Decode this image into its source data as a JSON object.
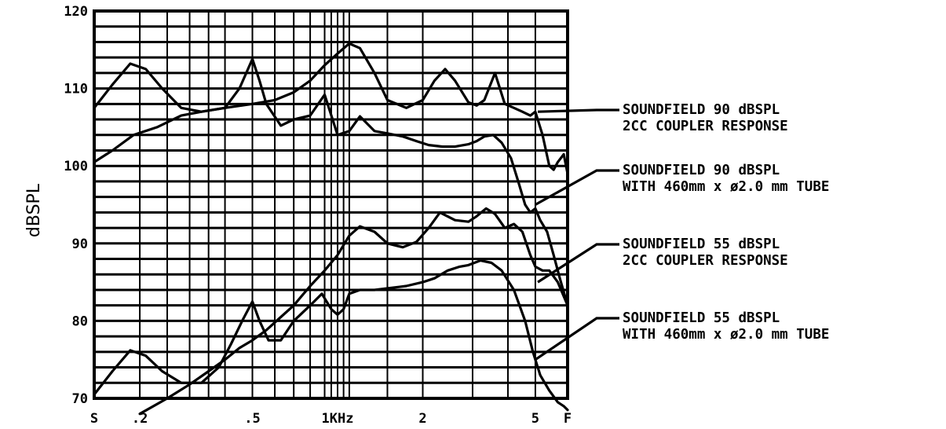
{
  "chart_data": {
    "type": "line",
    "title": "",
    "xlabel": "",
    "ylabel": "dBSPL",
    "ylim": [
      70,
      120
    ],
    "x_scale": "log",
    "xlim_khz": [
      0.138,
      6.5
    ],
    "grid": true,
    "y_ticks": [
      "70",
      "80",
      "90",
      "100",
      "110",
      "120"
    ],
    "x_tick_labels": [
      {
        "label": "S",
        "khz": 0.138
      },
      {
        "label": ".2",
        "khz": 0.2
      },
      {
        "label": ".5",
        "khz": 0.5
      },
      {
        "label": "1KHz",
        "khz": 1.0
      },
      {
        "label": "2",
        "khz": 2.0
      },
      {
        "label": "5",
        "khz": 5.0
      },
      {
        "label": "F",
        "khz": 6.5
      }
    ],
    "x_gridlines_khz": [
      0.2,
      0.25,
      0.3,
      0.35,
      0.4,
      0.5,
      0.6,
      0.7,
      0.8,
      0.9,
      0.95,
      1.0,
      1.05,
      1.1,
      1.5,
      2.0,
      3.0,
      4.0,
      5.0
    ],
    "series": [
      {
        "name": "SOUNDFIELD 90 dBSPL 2CC COUPLER RESPONSE",
        "x": [
          0.138,
          0.16,
          0.185,
          0.21,
          0.24,
          0.28,
          0.33,
          0.4,
          0.45,
          0.5,
          0.53,
          0.56,
          0.63,
          0.7,
          0.8,
          0.9,
          1.0,
          1.1,
          1.2,
          1.35,
          1.5,
          1.7,
          1.9,
          2.1,
          2.35,
          2.6,
          2.9,
          3.1,
          3.3,
          3.55,
          3.8,
          4.1,
          4.35,
          4.6,
          4.8,
          5.0,
          5.2,
          5.5,
          5.8,
          6.1,
          6.5
        ],
        "y": [
          107.5,
          110.5,
          113.2,
          112.5,
          110,
          107.5,
          107,
          107.5,
          110,
          113.8,
          111,
          108,
          105.2,
          106,
          106.5,
          109.2,
          104,
          104.5,
          106.4,
          104.5,
          104.2,
          103.8,
          103.2,
          102.7,
          102.5,
          102.5,
          102.8,
          103.2,
          103.8,
          104,
          103,
          101,
          98,
          95,
          94,
          94.5,
          93,
          91.5,
          88.5,
          85.5,
          82
        ]
      },
      {
        "name": "SOUNDFIELD 90 dBSPL WITH 460mm x ø2.0 mm TUBE",
        "x": [
          0.138,
          0.16,
          0.19,
          0.23,
          0.28,
          0.33,
          0.4,
          0.5,
          0.6,
          0.7,
          0.8,
          0.9,
          1.0,
          1.1,
          1.2,
          1.35,
          1.5,
          1.75,
          2.0,
          2.2,
          2.4,
          2.6,
          2.9,
          3.1,
          3.3,
          3.6,
          3.9,
          4.2,
          4.5,
          4.8,
          5.0,
          5.3,
          5.6,
          5.8,
          6.0,
          6.3,
          6.5
        ],
        "y": [
          100.5,
          102,
          104,
          105,
          106.5,
          107,
          107.5,
          108,
          108.5,
          109.5,
          111,
          113,
          114.5,
          115.8,
          115.2,
          112,
          108.5,
          107.5,
          108.5,
          111,
          112.5,
          111,
          108.2,
          107.8,
          108.5,
          112,
          108,
          107.5,
          107,
          106.5,
          107,
          104,
          100,
          99.5,
          100.5,
          101.5,
          99
        ]
      },
      {
        "name": "SOUNDFIELD 55 dBSPL 2CC COUPLER RESPONSE",
        "x": [
          0.138,
          0.16,
          0.185,
          0.21,
          0.24,
          0.28,
          0.33,
          0.38,
          0.42,
          0.46,
          0.5,
          0.53,
          0.57,
          0.63,
          0.7,
          0.8,
          0.88,
          0.95,
          1.0,
          1.05,
          1.1,
          1.2,
          1.35,
          1.5,
          1.75,
          2.0,
          2.2,
          2.45,
          2.7,
          2.9,
          3.2,
          3.5,
          3.8,
          4.2,
          4.6,
          4.9,
          5.2,
          5.6,
          6.0,
          6.3,
          6.5
        ],
        "y": [
          70.5,
          73.5,
          76.2,
          75.5,
          73.5,
          72,
          72,
          74,
          77,
          80,
          82.5,
          80,
          77.5,
          77.5,
          80,
          82,
          83.5,
          81.5,
          80.8,
          81.5,
          83.5,
          84,
          84,
          84.2,
          84.5,
          85,
          85.5,
          86.5,
          87,
          87.2,
          87.8,
          87.5,
          86.5,
          84,
          80,
          76,
          73,
          71,
          69.5,
          69,
          68.5
        ]
      },
      {
        "name": "SOUNDFIELD 55 dBSPL WITH 460mm x ø2.0 mm TUBE",
        "x": [
          0.2,
          0.25,
          0.3,
          0.35,
          0.4,
          0.45,
          0.5,
          0.56,
          0.63,
          0.7,
          0.8,
          0.9,
          1.0,
          1.1,
          1.2,
          1.35,
          1.5,
          1.7,
          1.9,
          2.1,
          2.3,
          2.6,
          2.9,
          3.1,
          3.35,
          3.6,
          3.9,
          4.2,
          4.5,
          4.8,
          5.0,
          5.3,
          5.6,
          6.0,
          6.5
        ],
        "y": [
          68,
          70,
          71.8,
          73.5,
          75,
          76.5,
          77.5,
          78.8,
          80.5,
          82,
          84.5,
          86.5,
          88.5,
          91,
          92.2,
          91.5,
          90,
          89.5,
          90.2,
          92,
          94,
          93,
          92.8,
          93.5,
          94.5,
          93.8,
          92,
          92.5,
          91.5,
          88.5,
          87,
          86.5,
          86.5,
          85,
          82
        ]
      }
    ],
    "legend": [
      {
        "line1": "SOUNDFIELD 90 dBSPL",
        "line2": "2CC COUPLER RESPONSE",
        "pointer": {
          "khz": 5.1,
          "db": 107
        }
      },
      {
        "line1": "SOUNDFIELD 90 dBSPL",
        "line2": "WITH 460mm x ø2.0 mm TUBE",
        "pointer": {
          "khz": 5.0,
          "db": 95
        }
      },
      {
        "line1": "SOUNDFIELD 55 dBSPL",
        "line2": "2CC COUPLER RESPONSE",
        "pointer": {
          "khz": 5.1,
          "db": 85
        }
      },
      {
        "line1": "SOUNDFIELD 55 dBSPL",
        "line2": "WITH 460mm x ø2.0 mm TUBE",
        "pointer": {
          "khz": 5.0,
          "db": 75
        }
      }
    ]
  }
}
